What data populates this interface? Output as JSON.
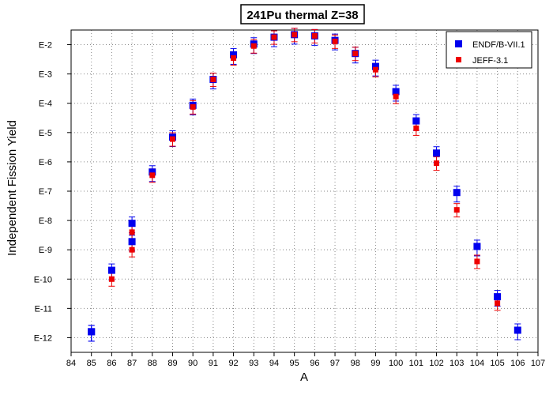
{
  "chart_data": {
    "type": "scatter",
    "title": "241Pu thermal Z=38",
    "xlabel": "A",
    "ylabel": "Independent Fission Yield",
    "xlim": [
      84,
      107
    ],
    "ylim_log10": [
      -12.5,
      -1.5
    ],
    "yscale": "log",
    "grid": true,
    "legend_position": "top-right",
    "x_ticks": [
      "84",
      "85",
      "86",
      "87",
      "88",
      "89",
      "90",
      "91",
      "92",
      "93",
      "94",
      "95",
      "96",
      "97",
      "98",
      "99",
      "100",
      "101",
      "102",
      "103",
      "104",
      "105",
      "106",
      "107"
    ],
    "y_ticks": [
      {
        "label": "E-2",
        "value": 0.01
      },
      {
        "label": "E-3",
        "value": 0.001
      },
      {
        "label": "E-4",
        "value": 0.0001
      },
      {
        "label": "E-5",
        "value": 1e-05
      },
      {
        "label": "E-6",
        "value": 1e-06
      },
      {
        "label": "E-7",
        "value": 1e-07
      },
      {
        "label": "E-8",
        "value": 1e-08
      },
      {
        "label": "E-9",
        "value": 1e-09
      },
      {
        "label": "E-10",
        "value": 1e-10
      },
      {
        "label": "E-11",
        "value": 1e-11
      },
      {
        "label": "E-12",
        "value": 1e-12
      }
    ],
    "series": [
      {
        "name": "ENDF/B-VII.1",
        "color": "#0000ee",
        "marker": "square",
        "points": [
          {
            "x": 85,
            "y": 1.6e-12
          },
          {
            "x": 85,
            "y": 1.6e-12
          },
          {
            "x": 86,
            "y": 2e-10
          },
          {
            "x": 87,
            "y": 8e-09
          },
          {
            "x": 87,
            "y": 1.9e-09
          },
          {
            "x": 88,
            "y": 4.5e-07
          },
          {
            "x": 89,
            "y": 7e-06
          },
          {
            "x": 90,
            "y": 8.5e-05
          },
          {
            "x": 91,
            "y": 0.00065
          },
          {
            "x": 92,
            "y": 0.0045
          },
          {
            "x": 93,
            "y": 0.0105
          },
          {
            "x": 94,
            "y": 0.018
          },
          {
            "x": 95,
            "y": 0.022
          },
          {
            "x": 96,
            "y": 0.02
          },
          {
            "x": 97,
            "y": 0.014
          },
          {
            "x": 98,
            "y": 0.005
          },
          {
            "x": 99,
            "y": 0.0018
          },
          {
            "x": 100,
            "y": 0.00025
          },
          {
            "x": 101,
            "y": 2.5e-05
          },
          {
            "x": 102,
            "y": 2e-06
          },
          {
            "x": 103,
            "y": 9e-08
          },
          {
            "x": 104,
            "y": 1.3e-09
          },
          {
            "x": 105,
            "y": 2.5e-11
          },
          {
            "x": 106,
            "y": 1.8e-12
          }
        ]
      },
      {
        "name": "JEFF-3.1",
        "color": "#ee0000",
        "marker": "square",
        "points": [
          {
            "x": 86,
            "y": 1e-10
          },
          {
            "x": 87,
            "y": 4e-09
          },
          {
            "x": 87,
            "y": 1e-09
          },
          {
            "x": 88,
            "y": 3.5e-07
          },
          {
            "x": 89,
            "y": 6e-06
          },
          {
            "x": 90,
            "y": 7.5e-05
          },
          {
            "x": 91,
            "y": 0.00065
          },
          {
            "x": 92,
            "y": 0.0035
          },
          {
            "x": 93,
            "y": 0.009
          },
          {
            "x": 94,
            "y": 0.018
          },
          {
            "x": 95,
            "y": 0.022
          },
          {
            "x": 96,
            "y": 0.02
          },
          {
            "x": 97,
            "y": 0.013
          },
          {
            "x": 98,
            "y": 0.005
          },
          {
            "x": 99,
            "y": 0.0014
          },
          {
            "x": 100,
            "y": 0.00017
          },
          {
            "x": 101,
            "y": 1.4e-05
          },
          {
            "x": 102,
            "y": 9e-07
          },
          {
            "x": 103,
            "y": 2.3e-08
          },
          {
            "x": 104,
            "y": 4e-10
          },
          {
            "x": 105,
            "y": 1.5e-11
          }
        ]
      }
    ]
  }
}
